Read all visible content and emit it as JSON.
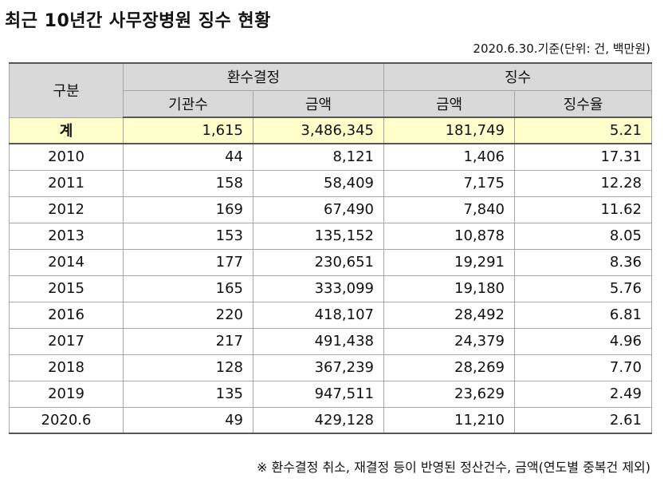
{
  "title": "최근 10년간 사무장병원 징수 현황",
  "unit_note": "2020.6.30.기준(단위: 건, 백만원)",
  "header": {
    "category": "구분",
    "group1": "환수결정",
    "group2": "징수",
    "col_count": "기관수",
    "col_amount1": "금액",
    "col_amount2": "금액",
    "col_rate": "징수율"
  },
  "total": {
    "label": "계",
    "count": "1,615",
    "decided": "3,486,345",
    "collected": "181,749",
    "rate": "5.21"
  },
  "rows": [
    {
      "year": "2010",
      "count": "44",
      "decided": "8,121",
      "collected": "1,406",
      "rate": "17.31"
    },
    {
      "year": "2011",
      "count": "158",
      "decided": "58,409",
      "collected": "7,175",
      "rate": "12.28"
    },
    {
      "year": "2012",
      "count": "169",
      "decided": "67,490",
      "collected": "7,840",
      "rate": "11.62"
    },
    {
      "year": "2013",
      "count": "153",
      "decided": "135,152",
      "collected": "10,878",
      "rate": "8.05"
    },
    {
      "year": "2014",
      "count": "177",
      "decided": "230,651",
      "collected": "19,291",
      "rate": "8.36"
    },
    {
      "year": "2015",
      "count": "165",
      "decided": "333,099",
      "collected": "19,180",
      "rate": "5.76"
    },
    {
      "year": "2016",
      "count": "220",
      "decided": "418,107",
      "collected": "28,492",
      "rate": "6.81"
    },
    {
      "year": "2017",
      "count": "217",
      "decided": "491,438",
      "collected": "24,379",
      "rate": "4.96"
    },
    {
      "year": "2018",
      "count": "128",
      "decided": "367,239",
      "collected": "28,269",
      "rate": "7.70"
    },
    {
      "year": "2019",
      "count": "135",
      "decided": "947,511",
      "collected": "23,629",
      "rate": "2.49"
    },
    {
      "year": "2020.6",
      "count": "49",
      "decided": "429,128",
      "collected": "11,210",
      "rate": "2.61"
    }
  ],
  "footnote": "※ 환수결정 취소, 재결정 등이 반영된 정산건수, 금액(연도별 중복건 제외)"
}
